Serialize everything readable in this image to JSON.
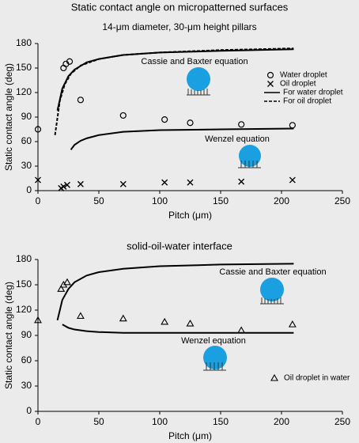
{
  "chart_data": [
    {
      "type": "scatter",
      "title": "Static contact angle on micropatterned surfaces",
      "subtitle": "14-μm diameter, 30-μm height pillars",
      "x_label": "Pitch (μm)",
      "y_label": "Static contact angle (deg)",
      "xlim": [
        0,
        250
      ],
      "xticks": [
        0,
        50,
        100,
        150,
        200,
        250
      ],
      "ylim": [
        0,
        180
      ],
      "yticks": [
        0,
        30,
        60,
        90,
        120,
        150,
        180
      ],
      "legend": "right",
      "annotations": [
        "Cassie and Baxter equation",
        "Wenzel equation"
      ],
      "series": [
        {
          "name": "Water droplet",
          "color": "#000000",
          "marker": "circle",
          "x": [
            0,
            21,
            23,
            26,
            35,
            70,
            104,
            125,
            167,
            209
          ],
          "values": [
            75,
            150,
            155,
            158,
            111,
            92,
            87,
            83,
            81,
            80
          ]
        },
        {
          "name": "Oil droplet",
          "color": "#000000",
          "marker": "x",
          "x": [
            0,
            19,
            21,
            24,
            35,
            70,
            104,
            125,
            167,
            209
          ],
          "values": [
            13,
            3,
            5,
            7,
            8,
            8,
            10,
            10,
            11,
            13
          ]
        },
        {
          "name": "For water droplet",
          "color": "#000000",
          "line": "solid",
          "x": [
            16,
            20,
            25,
            30,
            40,
            50,
            70,
            100,
            150,
            210
          ],
          "values": [
            98,
            125,
            140,
            148,
            157,
            161,
            166,
            169,
            171,
            173
          ]
        },
        {
          "name": "For oil droplet",
          "color": "#000000",
          "line": "dashed",
          "x": [
            14,
            18,
            22,
            27,
            35,
            50,
            70,
            100,
            150,
            210
          ],
          "values": [
            68,
            110,
            130,
            143,
            153,
            161,
            166,
            169,
            172,
            174
          ]
        },
        {
          "color": "#000000",
          "line": "solid",
          "x": [
            27,
            30,
            35,
            40,
            50,
            70,
            100,
            150,
            210
          ],
          "values": [
            50,
            56,
            61,
            64,
            68,
            72,
            74,
            75,
            76
          ]
        }
      ]
    },
    {
      "type": "scatter",
      "title": "solid-oil-water interface",
      "x_label": "Pitch (μm)",
      "y_label": "Static contact angle (deg)",
      "xlim": [
        0,
        250
      ],
      "xticks": [
        0,
        50,
        100,
        150,
        200,
        250
      ],
      "ylim": [
        0,
        180
      ],
      "yticks": [
        0,
        30,
        60,
        90,
        120,
        150,
        180
      ],
      "legend": "lower right",
      "annotations": [
        "Cassie and Baxter equation",
        "Wenzel equation"
      ],
      "series": [
        {
          "name": "Oil droplet in water",
          "color": "#000000",
          "marker": "triangle",
          "x": [
            0,
            19,
            21,
            24,
            35,
            70,
            104,
            125,
            167,
            209
          ],
          "values": [
            108,
            145,
            150,
            153,
            113,
            110,
            106,
            104,
            96,
            103
          ]
        },
        {
          "color": "#000000",
          "line": "solid",
          "x": [
            16,
            20,
            25,
            30,
            40,
            50,
            70,
            100,
            150,
            210
          ],
          "values": [
            108,
            132,
            145,
            153,
            161,
            165,
            169,
            172,
            174,
            175
          ]
        },
        {
          "color": "#000000",
          "line": "solid",
          "x": [
            20,
            25,
            30,
            40,
            50,
            70,
            100,
            150,
            210
          ],
          "values": [
            103,
            99,
            97,
            95,
            94,
            93,
            93,
            93,
            93
          ]
        }
      ]
    }
  ]
}
